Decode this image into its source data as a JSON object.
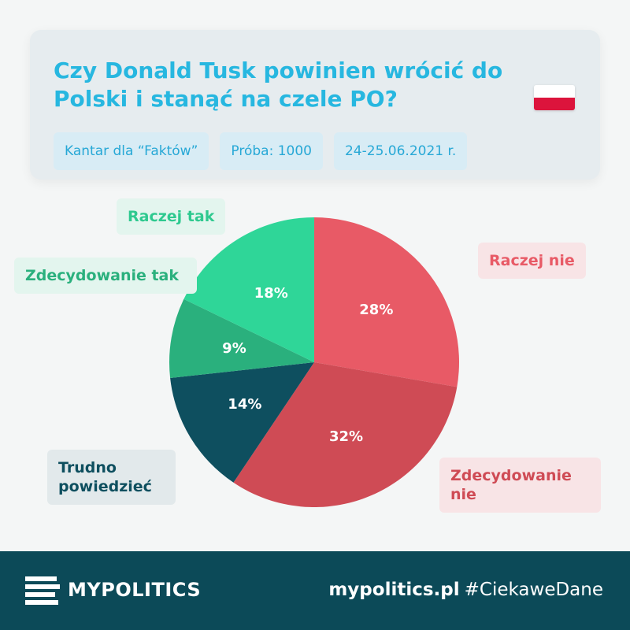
{
  "header": {
    "title": "Czy Donald Tusk powinien wrócić do Polski i stanąć na czele PO?",
    "meta": [
      "Kantar dla “Faktów”",
      "Próba: 1000",
      "24-25.06.2021 r."
    ],
    "flag_colors": [
      "#ffffff",
      "#dc143c"
    ]
  },
  "chart_data": {
    "type": "pie",
    "start": "12 o'clock, clockwise",
    "slices": [
      {
        "label": "Raczej nie",
        "value": 28,
        "display": "28%",
        "color": "#e85a66"
      },
      {
        "label": "Zdecydowanie nie",
        "value": 32,
        "display": "32%",
        "color": "#cf4b55"
      },
      {
        "label": "Trudno powiedzieć",
        "value": 14,
        "display": "14%",
        "color": "#0e4f5f"
      },
      {
        "label": "Zdecydowanie tak",
        "value": 9,
        "display": "9%",
        "color": "#2ab07d"
      },
      {
        "label": "Raczej tak",
        "value": 18,
        "display": "18%",
        "color": "#2fd698"
      }
    ]
  },
  "labels": {
    "raczej_tak": "Raczej tak",
    "zdecydowanie_tak": "Zdecydowanie tak",
    "raczej_nie": "Raczej nie",
    "zdecydowanie_nie": "Zdecydowanie nie",
    "trudno": "Trudno powiedzieć"
  },
  "footer": {
    "logo_icon": "stacked-bars-icon",
    "brand": "MYPOLITICS",
    "url": "mypolitics.pl",
    "hashtag": "#CiekaweDane"
  }
}
